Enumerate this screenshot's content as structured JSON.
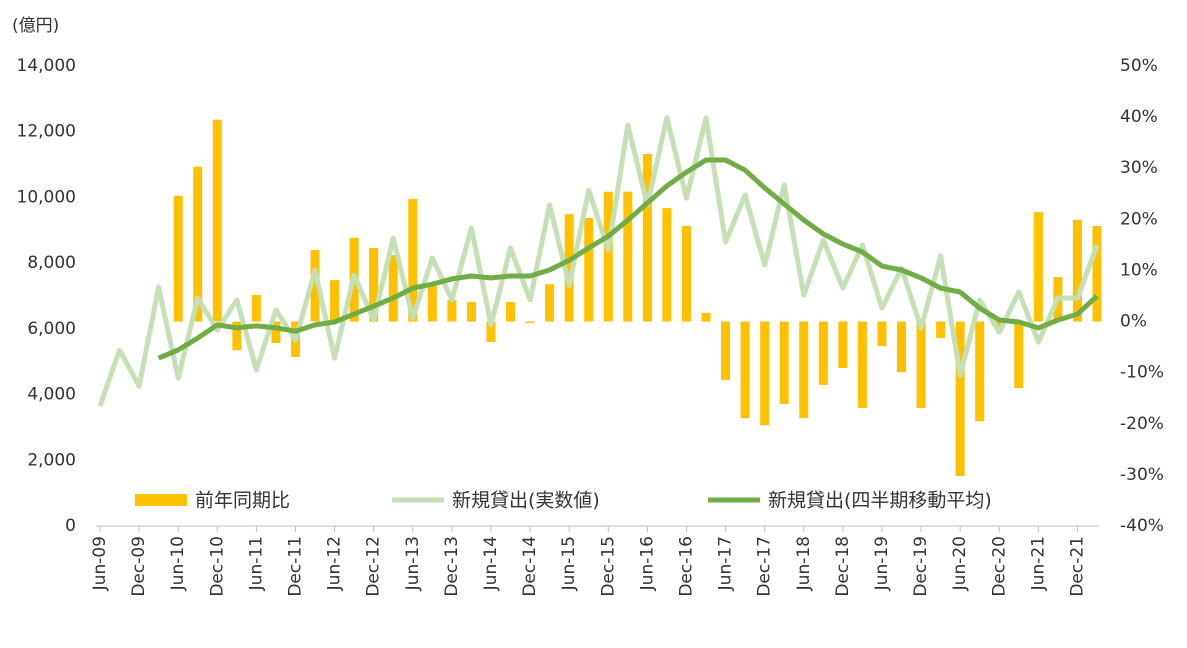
{
  "chart_data": {
    "type": "bar_line_combo",
    "unit_label": "(億円)",
    "categories": [
      "Jun-09",
      null,
      "Dec-09",
      null,
      "Jun-10",
      null,
      "Dec-10",
      null,
      "Jun-11",
      null,
      "Dec-11",
      null,
      "Jun-12",
      null,
      "Dec-12",
      null,
      "Jun-13",
      null,
      "Dec-13",
      null,
      "Jun-14",
      null,
      "Dec-14",
      null,
      "Jun-15",
      null,
      "Dec-15",
      null,
      "Jun-16",
      null,
      "Dec-16",
      null,
      "Jun-17",
      null,
      "Dec-17",
      null,
      "Jun-18",
      null,
      "Dec-18",
      null,
      "Jun-19",
      null,
      "Dec-19",
      null,
      "Jun-20",
      null,
      "Dec-20",
      null,
      "Jun-21",
      null,
      "Dec-21",
      null
    ],
    "series": [
      {
        "name": "前年同期比",
        "type": "bar",
        "axis": "y2",
        "color": "#FFC000",
        "values": [
          null,
          null,
          null,
          null,
          24.6,
          30.3,
          39.5,
          -5.6,
          5.2,
          -4.2,
          -6.9,
          14.0,
          8.1,
          16.4,
          14.4,
          13.0,
          24.0,
          7.2,
          4.2,
          3.8,
          -4.0,
          3.8,
          -0.3,
          7.3,
          21.0,
          20.3,
          25.4,
          25.4,
          32.8,
          22.2,
          18.7,
          1.7,
          -11.4,
          -18.9,
          -20.3,
          -16.1,
          -18.9,
          -12.4,
          -9.1,
          -16.9,
          -4.8,
          -9.9,
          -16.9,
          -3.2,
          -30.2,
          -19.5,
          -1.6,
          -13.0,
          21.4,
          8.7,
          19.9,
          18.7
        ]
      },
      {
        "name": "新規貸出(実数値)",
        "type": "line",
        "axis": "y",
        "color": "#C5E0B4",
        "values": [
          3650,
          5350,
          4260,
          7270,
          4500,
          6940,
          5960,
          6880,
          4750,
          6570,
          5660,
          7790,
          5110,
          7640,
          6270,
          8760,
          6330,
          8160,
          6880,
          9070,
          6120,
          8460,
          6880,
          9770,
          7330,
          10220,
          8400,
          12200,
          9770,
          12420,
          9980,
          12420,
          8640,
          10070,
          7940,
          10380,
          7030,
          8700,
          7240,
          8550,
          6630,
          7850,
          6030,
          8220,
          4590,
          6880,
          5900,
          7120,
          5600,
          6940,
          6940,
          8550
        ]
      },
      {
        "name": "新規貸出(四半期移動平均)",
        "type": "line",
        "axis": "y",
        "color": "#70AD47",
        "values": [
          null,
          null,
          null,
          5110,
          5360,
          5720,
          6120,
          6030,
          6090,
          6030,
          5930,
          6120,
          6210,
          6450,
          6690,
          6940,
          7240,
          7360,
          7520,
          7610,
          7550,
          7610,
          7610,
          7790,
          8090,
          8460,
          8820,
          9310,
          9830,
          10350,
          10770,
          11140,
          11140,
          10830,
          10290,
          9800,
          9310,
          8890,
          8580,
          8340,
          7910,
          7790,
          7550,
          7240,
          7120,
          6630,
          6270,
          6210,
          6030,
          6270,
          6450,
          7000
        ]
      }
    ],
    "ylim": [
      0,
      14000
    ],
    "yticks": [
      0,
      {
        "value": 2000,
        "label": "2,000"
      },
      {
        "value": 4000,
        "label": "4,000"
      },
      {
        "value": 6000,
        "label": "6,000"
      },
      {
        "value": 8000,
        "label": "8,000"
      },
      {
        "value": 10000,
        "label": "10,000"
      },
      {
        "value": 12000,
        "label": "12,000"
      },
      {
        "value": 14000,
        "label": "14,000"
      }
    ],
    "y2lim": [
      -40,
      50
    ],
    "y2ticks": [
      {
        "value": -40,
        "label": "-40%"
      },
      {
        "value": -30,
        "label": "-30%"
      },
      {
        "value": -20,
        "label": "-20%"
      },
      {
        "value": -10,
        "label": "-10%"
      },
      {
        "value": 0,
        "label": "0%"
      },
      {
        "value": 10,
        "label": "10%"
      },
      {
        "value": 20,
        "label": "20%"
      },
      {
        "value": 30,
        "label": "30%"
      },
      {
        "value": 40,
        "label": "40%"
      },
      {
        "value": 50,
        "label": "50%"
      }
    ],
    "legend": "bottom"
  }
}
